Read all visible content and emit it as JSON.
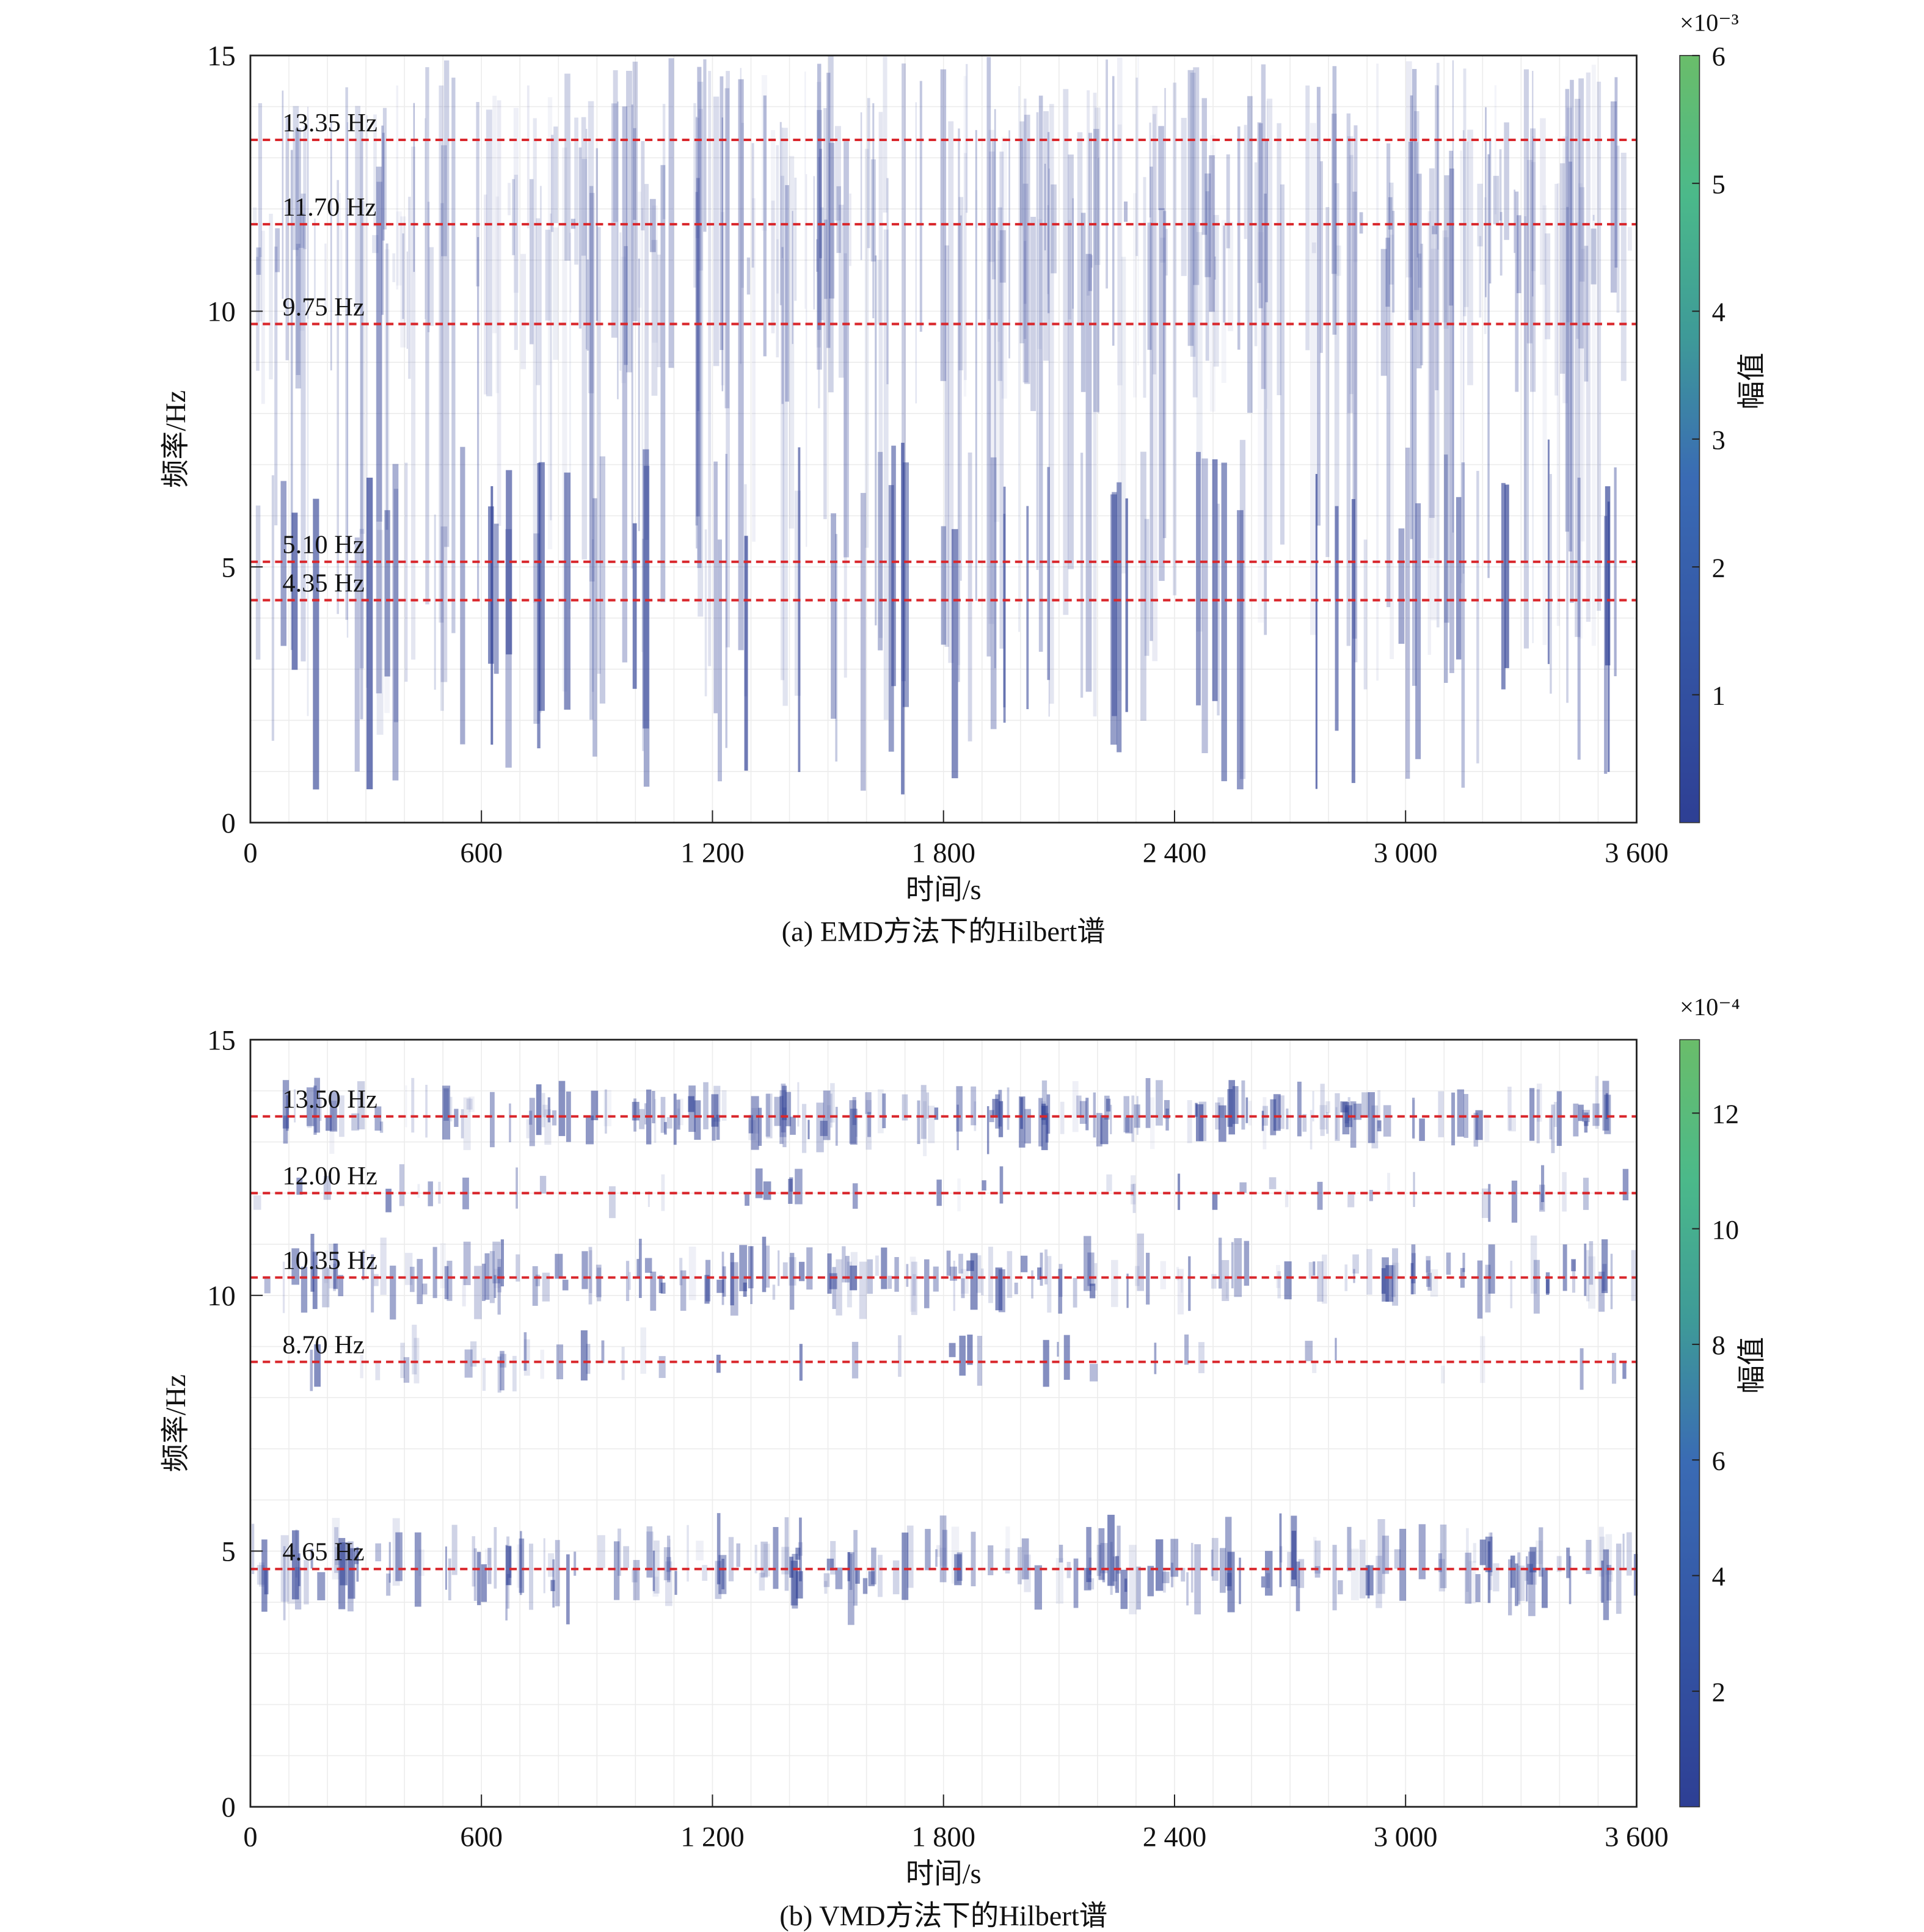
{
  "chart_data": [
    {
      "type": "heatmap",
      "title": "",
      "caption": "(a) EMD方法下的Hilbert谱",
      "xlabel": "时间/s",
      "ylabel": "频率/Hz",
      "xlim": [
        0,
        3600
      ],
      "ylim": [
        0,
        15
      ],
      "xticks": [
        0,
        600,
        1200,
        1800,
        2400,
        3000,
        3600
      ],
      "xtick_labels": [
        "0",
        "600",
        "1 200",
        "1 800",
        "2 400",
        "3 000",
        "3 600"
      ],
      "yticks": [
        0,
        5,
        10,
        15
      ],
      "ytick_labels": [
        "0",
        "5",
        "10",
        "15"
      ],
      "colorbar": {
        "label": "幅值",
        "exponent": "×10⁻³",
        "range": [
          0,
          6
        ],
        "ticks": [
          1,
          2,
          3,
          4,
          5,
          6
        ],
        "tick_labels": [
          "1",
          "2",
          "3",
          "4",
          "5",
          "6"
        ],
        "colormap": [
          "#2e3f94",
          "#3a6bb4",
          "#3e9a98",
          "#4bb98a",
          "#6abd6a"
        ]
      },
      "reference_lines": [
        {
          "freq": 13.35,
          "label": "13.35 Hz"
        },
        {
          "freq": 11.7,
          "label": "11.70 Hz"
        },
        {
          "freq": 9.75,
          "label": "9.75 Hz"
        },
        {
          "freq": 5.1,
          "label": "5.10 Hz"
        },
        {
          "freq": 4.35,
          "label": "4.35 Hz"
        }
      ],
      "pattern": "broadband",
      "grid": true
    },
    {
      "type": "heatmap",
      "title": "",
      "caption": "(b) VMD方法下的Hilbert谱",
      "xlabel": "时间/s",
      "ylabel": "频率/Hz",
      "xlim": [
        0,
        3600
      ],
      "ylim": [
        0,
        15
      ],
      "xticks": [
        0,
        600,
        1200,
        1800,
        2400,
        3000,
        3600
      ],
      "xtick_labels": [
        "0",
        "600",
        "1 200",
        "1 800",
        "2 400",
        "3 000",
        "3 600"
      ],
      "yticks": [
        0,
        5,
        10,
        15
      ],
      "ytick_labels": [
        "0",
        "5",
        "10",
        "15"
      ],
      "colorbar": {
        "label": "幅值",
        "exponent": "×10⁻⁴",
        "range": [
          0,
          13.27
        ],
        "ticks": [
          2,
          4,
          6,
          8,
          10,
          12
        ],
        "tick_labels": [
          "2",
          "4",
          "6",
          "8",
          "10",
          "12"
        ],
        "colormap": [
          "#2e3f94",
          "#3a6bb4",
          "#3e9a98",
          "#4bb98a",
          "#6abd6a"
        ]
      },
      "reference_lines": [
        {
          "freq": 13.5,
          "label": "13.50 Hz"
        },
        {
          "freq": 12.0,
          "label": "12.00 Hz"
        },
        {
          "freq": 10.35,
          "label": "10.35 Hz"
        },
        {
          "freq": 8.7,
          "label": "8.70 Hz"
        },
        {
          "freq": 4.65,
          "label": "4.65 Hz"
        }
      ],
      "pattern": "banded",
      "grid": true
    }
  ],
  "colors": {
    "ref_line": "#d9262b",
    "energy": "#2e3f94"
  }
}
